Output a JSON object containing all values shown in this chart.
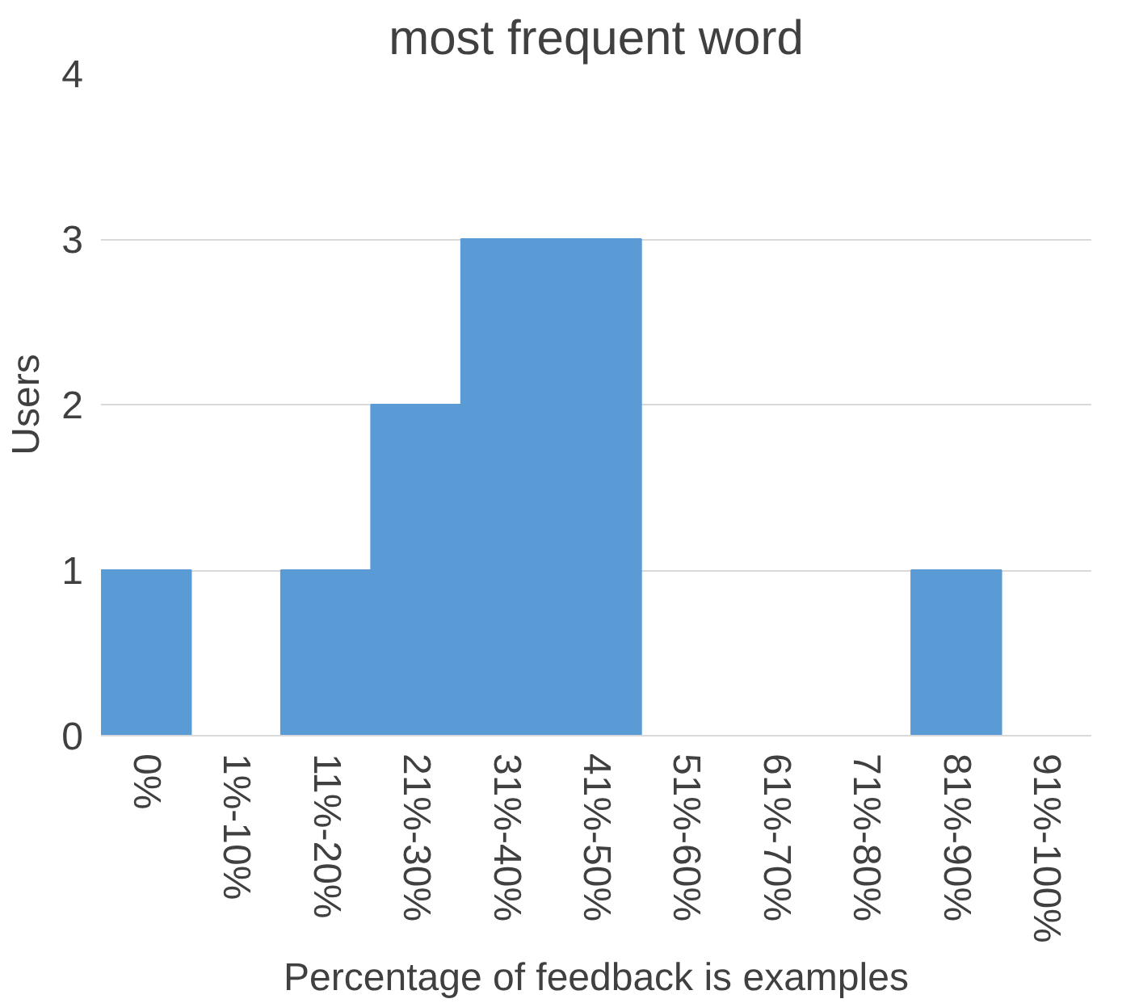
{
  "chart_data": {
    "type": "bar",
    "title": "most frequent word",
    "xlabel": "Percentage of feedback is examples",
    "ylabel": "Users",
    "categories": [
      "0%",
      "1%-10%",
      "11%-20%",
      "21%-30%",
      "31%-40%",
      "41%-50%",
      "51%-60%",
      "61%-70%",
      "71%-80%",
      "81%-90%",
      "91%-100%"
    ],
    "values": [
      1,
      0,
      1,
      2,
      3,
      3,
      0,
      0,
      0,
      1,
      0
    ],
    "color": "#5b9bd5",
    "ylim": [
      0,
      4
    ],
    "yticks": [
      0,
      1,
      2,
      3,
      4
    ],
    "grid": "y"
  }
}
